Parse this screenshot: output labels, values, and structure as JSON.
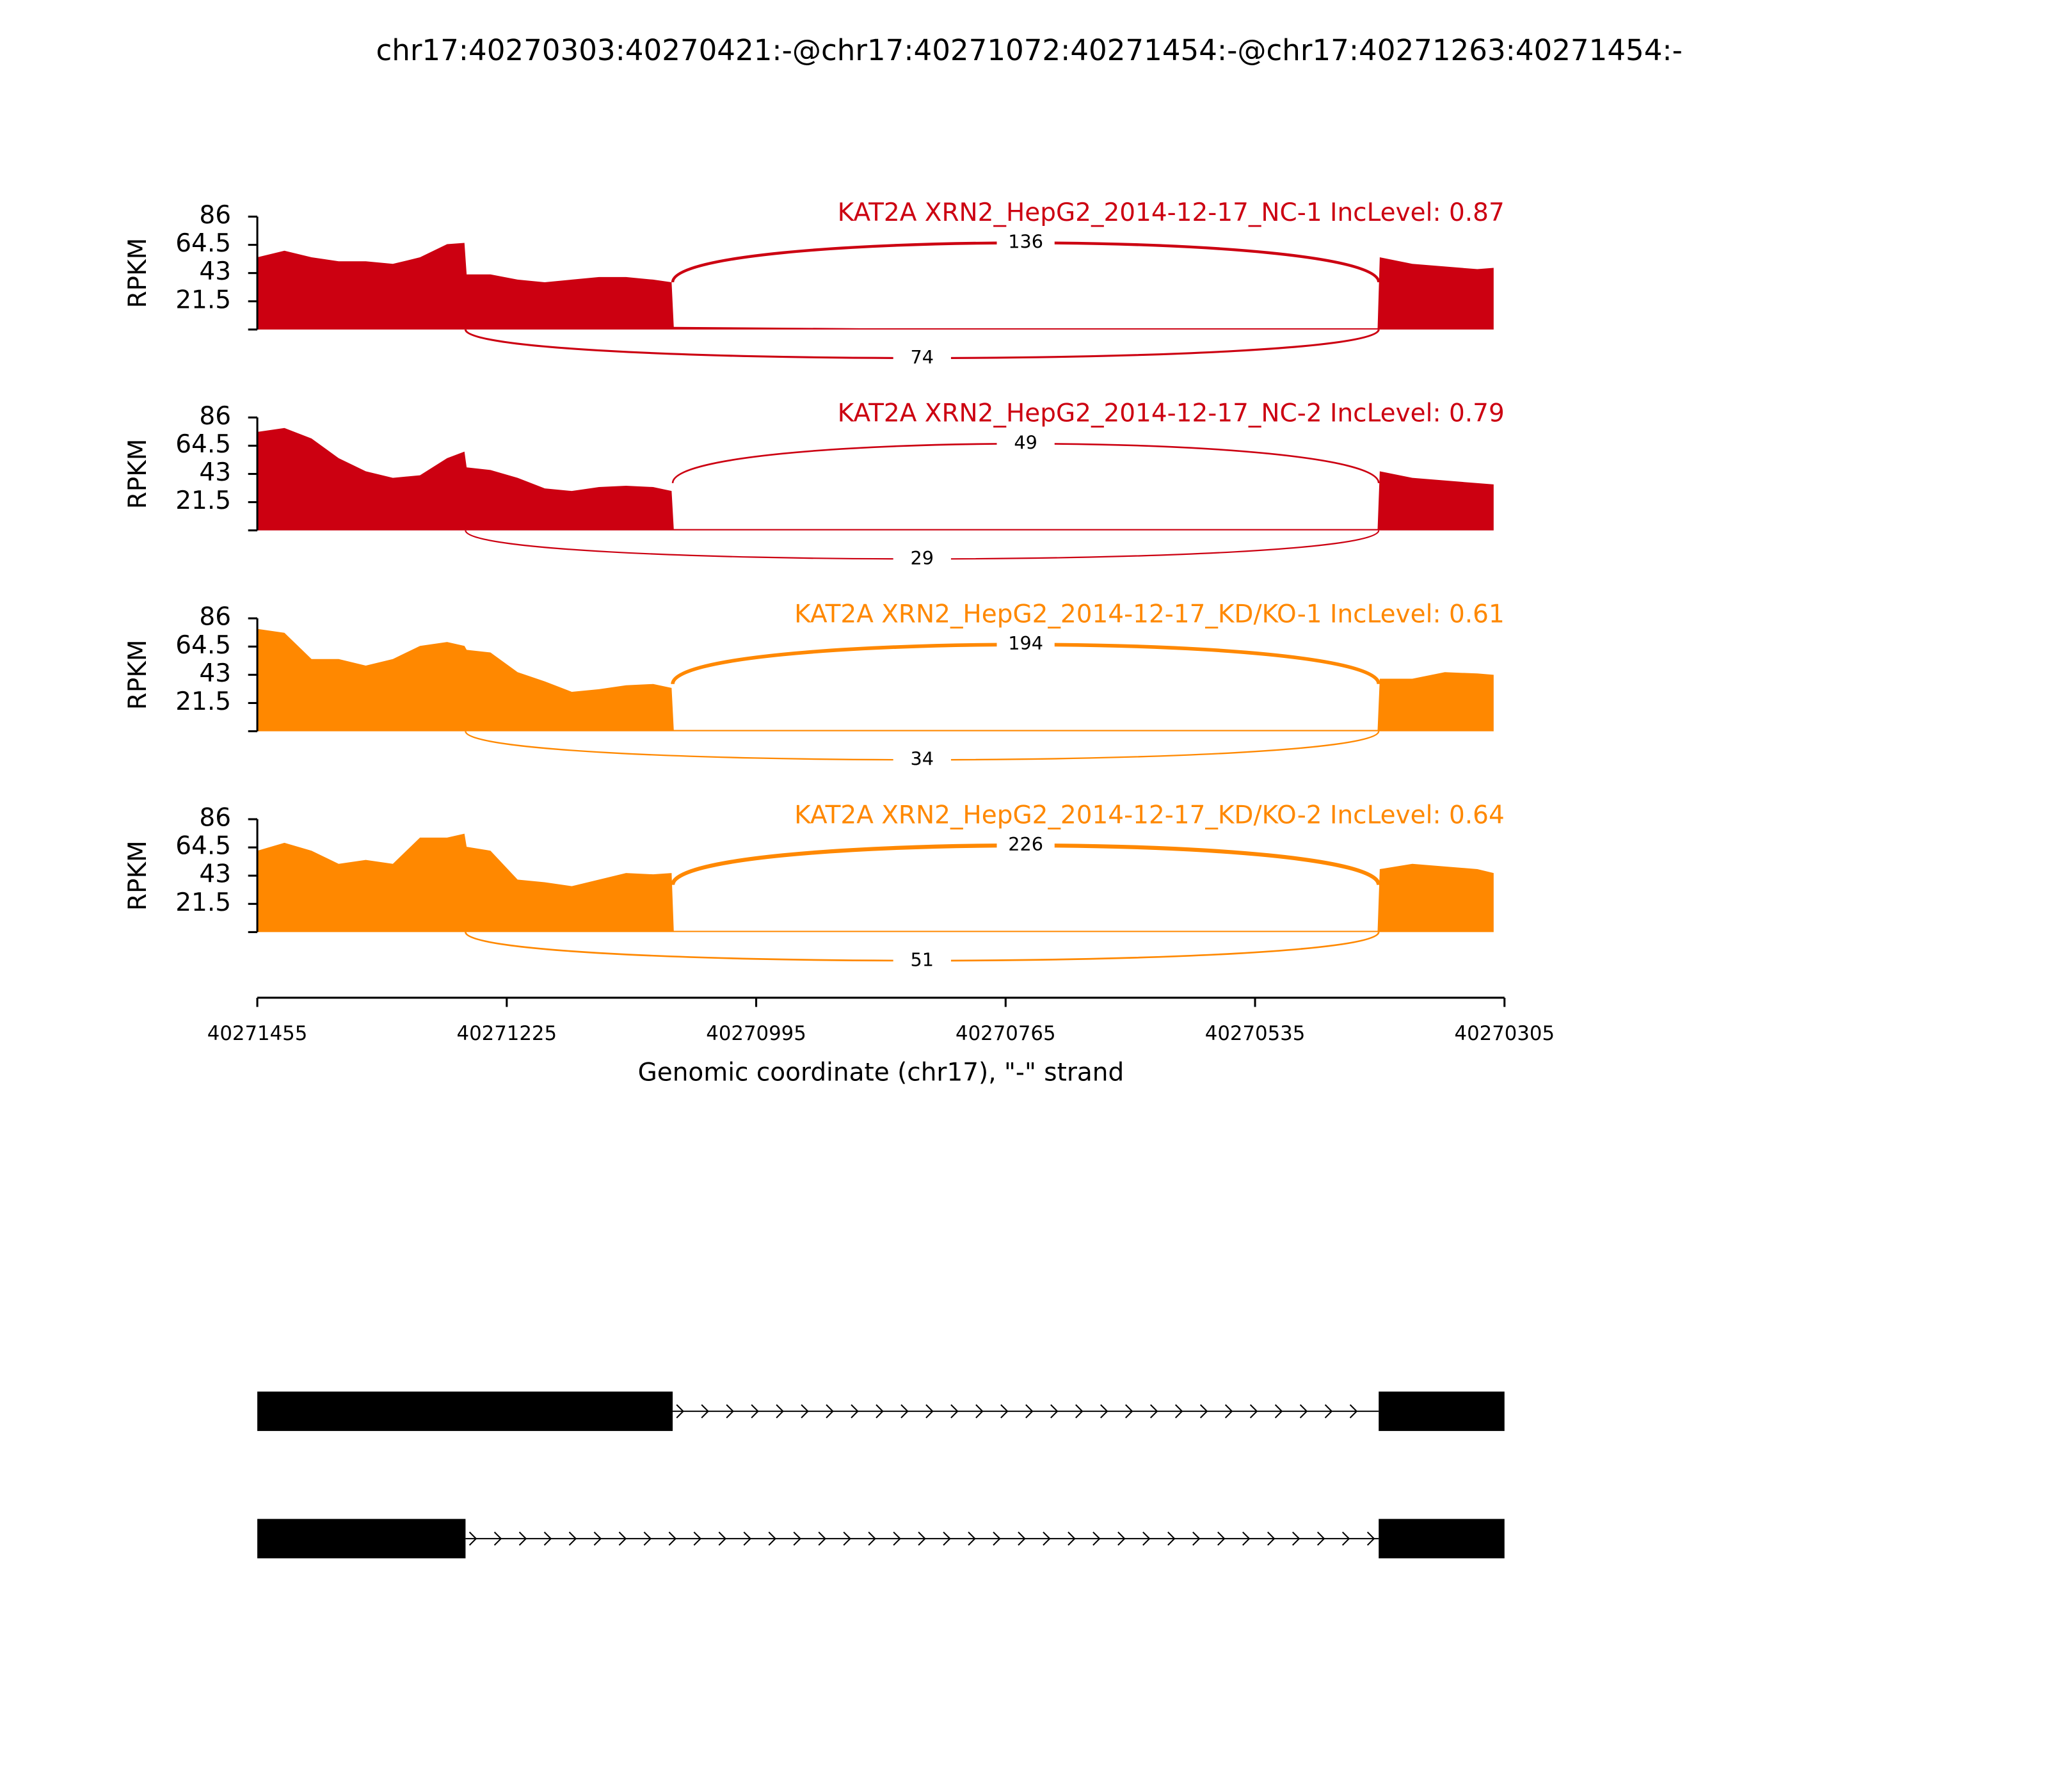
{
  "title": "chr17:40270303:40270421:-@chr17:40271072:40271454:-@chr17:40271263:40271454:-",
  "xaxis": {
    "label": "Genomic coordinate (chr17), \"-\" strand",
    "xlim": [
      40271455,
      40270305
    ],
    "xticks": [
      40271455,
      40271225,
      40270995,
      40270765,
      40270535,
      40270305
    ]
  },
  "chart_data": [
    {
      "type": "area",
      "title": "KAT2A XRN2_HepG2_2014-12-17_NC-1 IncLevel: 0.87",
      "ylabel": "RPKM",
      "color": "#cc0011",
      "ylim": [
        0,
        86
      ],
      "yticks": [
        21.5,
        43,
        64.5,
        86
      ],
      "x": [
        40271455,
        40271430,
        40271405,
        40271380,
        40271355,
        40271330,
        40271305,
        40271280,
        40271264,
        40271262,
        40271240,
        40271215,
        40271190,
        40271165,
        40271140,
        40271115,
        40271090,
        40271073,
        40271071,
        40270900,
        40270700,
        40270500,
        40270422,
        40270420,
        40270390,
        40270360,
        40270330,
        40270315
      ],
      "values": [
        55,
        60,
        55,
        52,
        52,
        50,
        55,
        65,
        66,
        42,
        42,
        38,
        36,
        38,
        40,
        40,
        38,
        36,
        2,
        1,
        1,
        1,
        1,
        55,
        50,
        48,
        46,
        47
      ],
      "junctions": [
        {
          "start": 40271072,
          "end": 40270421,
          "count": 136,
          "side": "above"
        },
        {
          "start": 40271263,
          "end": 40270421,
          "count": 74,
          "side": "below"
        }
      ]
    },
    {
      "type": "area",
      "title": "KAT2A XRN2_HepG2_2014-12-17_NC-2 IncLevel: 0.79",
      "ylabel": "RPKM",
      "color": "#cc0011",
      "ylim": [
        0,
        86
      ],
      "yticks": [
        21.5,
        43,
        64.5,
        86
      ],
      "x": [
        40271455,
        40271430,
        40271405,
        40271380,
        40271355,
        40271330,
        40271305,
        40271280,
        40271264,
        40271262,
        40271240,
        40271215,
        40271190,
        40271165,
        40271140,
        40271115,
        40271090,
        40271073,
        40271071,
        40270900,
        40270700,
        40270500,
        40270422,
        40270420,
        40270390,
        40270360,
        40270330,
        40270315
      ],
      "values": [
        75,
        78,
        70,
        55,
        45,
        40,
        42,
        55,
        60,
        48,
        46,
        40,
        32,
        30,
        33,
        34,
        33,
        30,
        1,
        1,
        1,
        1,
        1,
        45,
        40,
        38,
        36,
        35
      ],
      "junctions": [
        {
          "start": 40271072,
          "end": 40270421,
          "count": 49,
          "side": "above"
        },
        {
          "start": 40271263,
          "end": 40270421,
          "count": 29,
          "side": "below"
        }
      ]
    },
    {
      "type": "area",
      "title": "KAT2A XRN2_HepG2_2014-12-17_KD/KO-1 IncLevel: 0.61",
      "ylabel": "RPKM",
      "color": "#ff8800",
      "ylim": [
        0,
        86
      ],
      "yticks": [
        21.5,
        43,
        64.5,
        86
      ],
      "x": [
        40271455,
        40271430,
        40271405,
        40271380,
        40271355,
        40271330,
        40271305,
        40271280,
        40271264,
        40271262,
        40271240,
        40271215,
        40271190,
        40271165,
        40271140,
        40271115,
        40271090,
        40271073,
        40271071,
        40270900,
        40270700,
        40270500,
        40270422,
        40270420,
        40270390,
        40270360,
        40270330,
        40270315
      ],
      "values": [
        78,
        75,
        55,
        55,
        50,
        55,
        65,
        68,
        65,
        62,
        60,
        45,
        38,
        30,
        32,
        35,
        36,
        33,
        1,
        1,
        1,
        1,
        1,
        40,
        40,
        45,
        44,
        43
      ],
      "junctions": [
        {
          "start": 40271072,
          "end": 40270421,
          "count": 194,
          "side": "above"
        },
        {
          "start": 40271263,
          "end": 40270421,
          "count": 34,
          "side": "below"
        }
      ]
    },
    {
      "type": "area",
      "title": "KAT2A XRN2_HepG2_2014-12-17_KD/KO-2 IncLevel: 0.64",
      "ylabel": "RPKM",
      "color": "#ff8800",
      "ylim": [
        0,
        86
      ],
      "yticks": [
        21.5,
        43,
        64.5,
        86
      ],
      "x": [
        40271455,
        40271430,
        40271405,
        40271380,
        40271355,
        40271330,
        40271305,
        40271280,
        40271264,
        40271262,
        40271240,
        40271215,
        40271190,
        40271165,
        40271140,
        40271115,
        40271090,
        40271073,
        40271071,
        40270900,
        40270700,
        40270500,
        40270422,
        40270420,
        40270390,
        40270360,
        40270330,
        40270315
      ],
      "values": [
        62,
        68,
        62,
        52,
        55,
        52,
        72,
        72,
        75,
        65,
        62,
        40,
        38,
        35,
        40,
        45,
        44,
        45,
        1,
        1,
        1,
        1,
        1,
        48,
        52,
        50,
        48,
        45
      ],
      "junctions": [
        {
          "start": 40271072,
          "end": 40270421,
          "count": 226,
          "side": "above"
        },
        {
          "start": 40271263,
          "end": 40270421,
          "count": 51,
          "side": "below"
        }
      ]
    }
  ],
  "transcripts": [
    {
      "exons": [
        [
          40271455,
          40271072
        ],
        [
          40270421,
          40270305
        ]
      ]
    },
    {
      "exons": [
        [
          40271455,
          40271263
        ],
        [
          40270421,
          40270305
        ]
      ]
    }
  ]
}
